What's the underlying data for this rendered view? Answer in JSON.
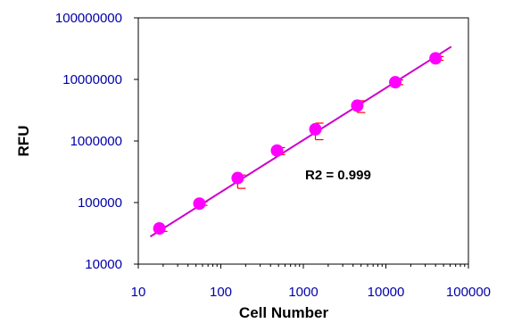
{
  "chart_data": {
    "type": "scatter",
    "title": "",
    "xlabel": "Cell Number",
    "ylabel": "RFU",
    "x_scale": "log",
    "y_scale": "log",
    "xlim": [
      10,
      100000
    ],
    "ylim": [
      10000,
      100000000
    ],
    "x_ticks": [
      "10",
      "100",
      "1000",
      "10000",
      "100000"
    ],
    "y_ticks": [
      "10000",
      "100000",
      "1000000",
      "10000000",
      "100000000"
    ],
    "grid": false,
    "legend": "none",
    "series": [
      {
        "points": [
          {
            "x": 18,
            "y": 38000,
            "err_low": 34000,
            "err_high": 41000
          },
          {
            "x": 55,
            "y": 96000,
            "err_low": 90000,
            "err_high": 102000
          },
          {
            "x": 160,
            "y": 250000,
            "err_low": 170000,
            "err_high": 280000
          },
          {
            "x": 480,
            "y": 700000,
            "err_low": 600000,
            "err_high": 780000
          },
          {
            "x": 1400,
            "y": 1550000,
            "err_low": 1050000,
            "err_high": 1950000
          },
          {
            "x": 4500,
            "y": 3750000,
            "err_low": 2900000,
            "err_high": 4500000
          },
          {
            "x": 13000,
            "y": 9000000,
            "err_low": 8200000,
            "err_high": 9800000
          },
          {
            "x": 40000,
            "y": 22000000,
            "err_low": 20500000,
            "err_high": 23500000
          }
        ]
      }
    ],
    "trendline": {
      "x_start": 14,
      "y_start": 28000,
      "x_end": 62000,
      "y_end": 34000000
    },
    "annotation": "R2 = 0.999",
    "colors": {
      "marker": "#ff00ff",
      "trendline": "#cc00cc",
      "error_bar": "#ff0000",
      "axis": "#000000",
      "tick_label": "#0000aa",
      "axis_title": "#0000cc"
    }
  }
}
